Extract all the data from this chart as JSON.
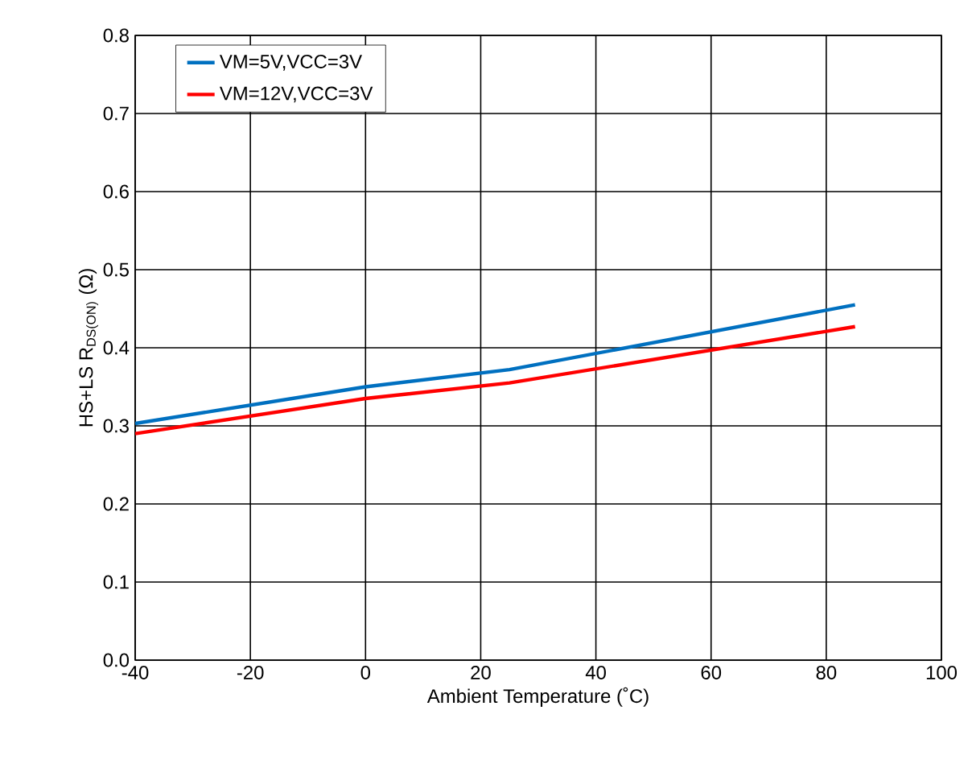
{
  "chart_data": {
    "type": "line",
    "xlabel": "Ambient Temperature (˚C)",
    "ylabel": "HS+LS R$_{DS(ON)}$ (Ω)",
    "xlim": [
      -40,
      100
    ],
    "xticks": [
      -40,
      -20,
      0,
      20,
      40,
      60,
      80,
      100
    ],
    "ylim": [
      0,
      0.8
    ],
    "yticks": [
      {
        "value": 0,
        "label": "0.0"
      },
      0.1,
      0.2,
      0.3,
      0.4,
      0.5,
      0.6,
      0.7,
      0.8
    ],
    "grid": true,
    "legend": "top left",
    "series": [
      {
        "name": "VM=5V,VCC=3V",
        "color": "#0070c0",
        "x": [
          -40,
          0,
          25,
          85
        ],
        "values": [
          0.303,
          0.35,
          0.372,
          0.455
        ]
      },
      {
        "name": "VM=12V,VCC=3V",
        "color": "#ff0000",
        "x": [
          -40,
          0,
          25,
          85
        ],
        "values": [
          0.29,
          0.335,
          0.355,
          0.427
        ]
      }
    ]
  }
}
